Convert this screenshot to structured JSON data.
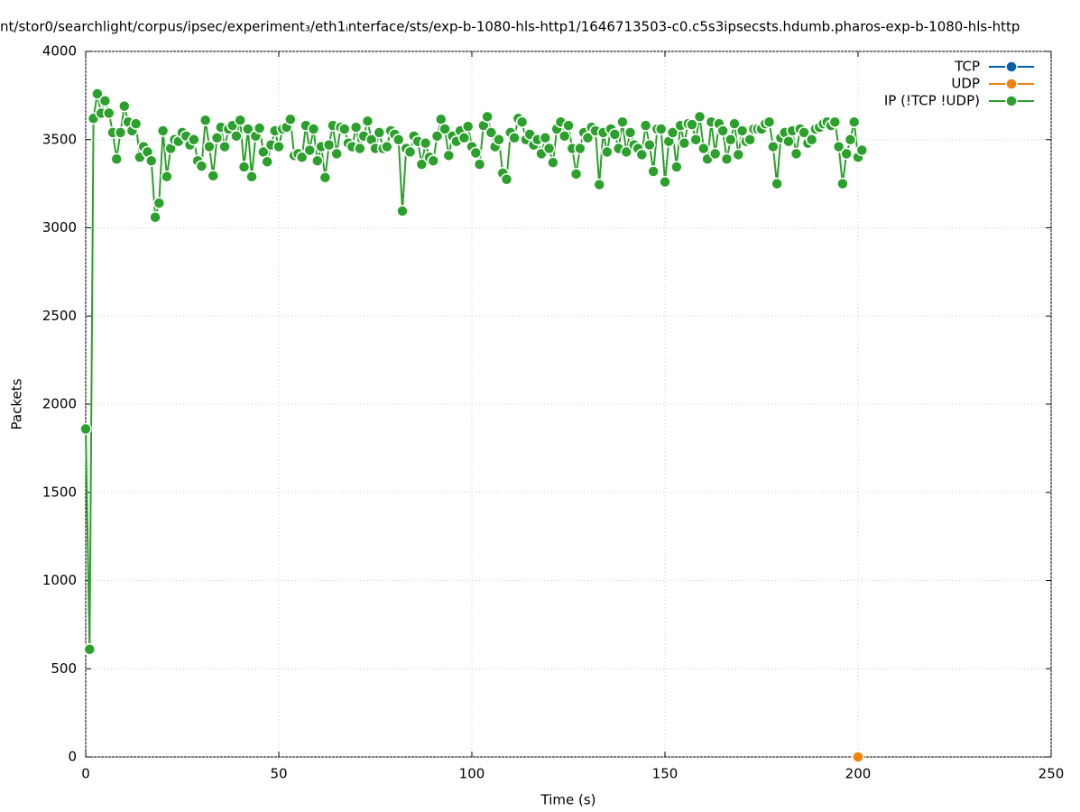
{
  "chart_data": {
    "type": "line",
    "title": "nt/stor0/searchlight/corpus/ipsec/experiment₃/eth1ᵢnterface/sts/exp-b-1080-hls-http1/1646713503-c0.c5s3ipsecsts.hdumb.pharos-exp-b-1080-hls-http",
    "x_label": "Time (s)",
    "y_label": "Packets",
    "xlim": [
      0,
      250
    ],
    "xticks": [
      0,
      50,
      100,
      150,
      200,
      250
    ],
    "ylim": [
      0,
      4000
    ],
    "yticks": [
      0,
      500,
      1000,
      1500,
      2000,
      2500,
      3000,
      3500,
      4000
    ],
    "grid": true,
    "legend": "top-right",
    "series": [
      {
        "name": "TCP",
        "color": "#0060ad",
        "x": [],
        "values": []
      },
      {
        "name": "UDP",
        "color": "#f0820f",
        "x": [
          200
        ],
        "values": [
          0
        ]
      },
      {
        "name": "IP (!TCP  !UDP)",
        "color": "#2ca02c",
        "x": [
          0,
          1,
          2,
          3,
          4,
          5,
          6,
          7,
          8,
          9,
          10,
          11,
          12,
          13,
          14,
          15,
          16,
          17,
          18,
          19,
          20,
          21,
          22,
          23,
          24,
          25,
          26,
          27,
          28,
          29,
          30,
          31,
          32,
          33,
          34,
          35,
          36,
          37,
          38,
          39,
          40,
          41,
          42,
          43,
          44,
          45,
          46,
          47,
          48,
          49,
          50,
          51,
          52,
          53,
          54,
          55,
          56,
          57,
          58,
          59,
          60,
          61,
          62,
          63,
          64,
          65,
          66,
          67,
          68,
          69,
          70,
          71,
          72,
          73,
          74,
          75,
          76,
          77,
          78,
          79,
          80,
          81,
          82,
          83,
          84,
          85,
          86,
          87,
          88,
          89,
          90,
          91,
          92,
          93,
          94,
          95,
          96,
          97,
          98,
          99,
          100,
          101,
          102,
          103,
          104,
          105,
          106,
          107,
          108,
          109,
          110,
          111,
          112,
          113,
          114,
          115,
          116,
          117,
          118,
          119,
          120,
          121,
          122,
          123,
          124,
          125,
          126,
          127,
          128,
          129,
          130,
          131,
          132,
          133,
          134,
          135,
          136,
          137,
          138,
          139,
          140,
          141,
          142,
          143,
          144,
          145,
          146,
          147,
          148,
          149,
          150,
          151,
          152,
          153,
          154,
          155,
          156,
          157,
          158,
          159,
          160,
          161,
          162,
          163,
          164,
          165,
          166,
          167,
          168,
          169,
          170,
          171,
          172,
          173,
          174,
          175,
          176,
          177,
          178,
          179,
          180,
          181,
          182,
          183,
          184,
          185,
          186,
          187,
          188,
          189,
          190,
          191,
          192,
          193,
          194,
          195,
          196,
          197,
          198,
          199,
          200,
          201
        ],
        "values": [
          1860,
          610,
          3620,
          3760,
          3650,
          3720,
          3650,
          3540,
          3390,
          3540,
          3690,
          3600,
          3550,
          3590,
          3400,
          3460,
          3430,
          3380,
          3060,
          3140,
          3550,
          3290,
          3450,
          3500,
          3490,
          3540,
          3520,
          3470,
          3500,
          3380,
          3350,
          3610,
          3460,
          3295,
          3510,
          3570,
          3460,
          3560,
          3580,
          3520,
          3610,
          3345,
          3560,
          3290,
          3520,
          3565,
          3430,
          3375,
          3470,
          3550,
          3460,
          3560,
          3570,
          3615,
          3410,
          3420,
          3400,
          3580,
          3440,
          3560,
          3380,
          3460,
          3285,
          3470,
          3580,
          3420,
          3570,
          3560,
          3480,
          3460,
          3570,
          3450,
          3520,
          3605,
          3500,
          3450,
          3540,
          3450,
          3460,
          3550,
          3530,
          3500,
          3095,
          3450,
          3430,
          3520,
          3490,
          3360,
          3480,
          3400,
          3380,
          3520,
          3615,
          3560,
          3410,
          3520,
          3490,
          3550,
          3510,
          3575,
          3460,
          3425,
          3360,
          3580,
          3630,
          3540,
          3460,
          3500,
          3310,
          3275,
          3540,
          3510,
          3620,
          3600,
          3500,
          3530,
          3470,
          3500,
          3420,
          3510,
          3450,
          3370,
          3560,
          3600,
          3520,
          3580,
          3450,
          3305,
          3450,
          3540,
          3510,
          3570,
          3550,
          3245,
          3540,
          3430,
          3560,
          3530,
          3450,
          3600,
          3430,
          3540,
          3470,
          3450,
          3415,
          3580,
          3470,
          3320,
          3560,
          3560,
          3260,
          3490,
          3540,
          3345,
          3580,
          3480,
          3590,
          3585,
          3500,
          3630,
          3450,
          3390,
          3600,
          3420,
          3590,
          3550,
          3390,
          3500,
          3590,
          3415,
          3550,
          3490,
          3500,
          3560,
          3560,
          3560,
          3590,
          3600,
          3460,
          3250,
          3510,
          3540,
          3490,
          3550,
          3420,
          3560,
          3540,
          3480,
          3500,
          3560,
          3570,
          3590,
          3600,
          3580,
          3600,
          3460,
          3250,
          3420,
          3500,
          3600,
          3400,
          3440
        ]
      }
    ]
  }
}
